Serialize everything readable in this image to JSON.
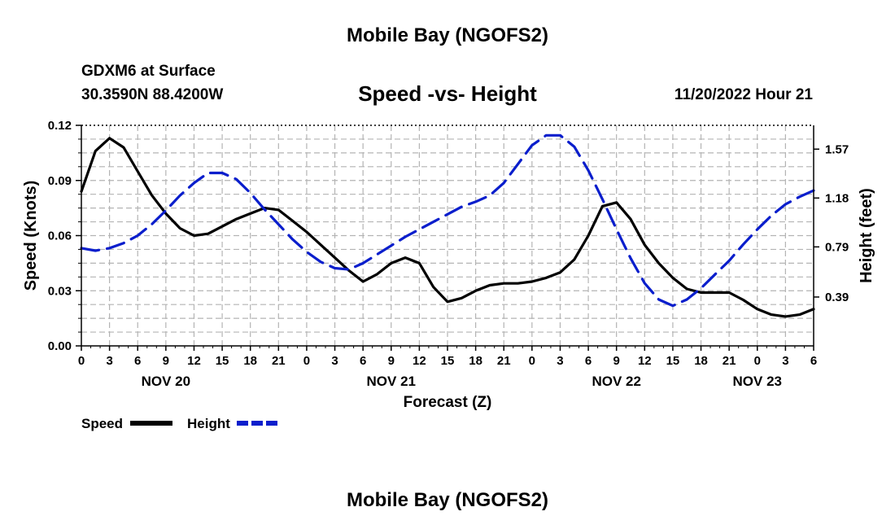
{
  "header": {
    "title": "Mobile Bay (NGOFS2)",
    "station": "GDXM6 at Surface",
    "location": "30.3590N  88.4200W",
    "subtitle": "Speed -vs- Height",
    "timestamp": "11/20/2022 Hour 21"
  },
  "footer": {
    "title": "Mobile Bay (NGOFS2)"
  },
  "chart_data": {
    "type": "line",
    "title": "Speed -vs- Height",
    "xlabel": "Forecast (Z)",
    "ylabel": "Speed (Knots)",
    "y2label": "Height (feet)",
    "xlim": [
      0,
      78
    ],
    "ylim": [
      0,
      0.12
    ],
    "y2lim": [
      0.0,
      1.76
    ],
    "x_ticks": [
      0,
      3,
      6,
      9,
      12,
      15,
      18,
      21,
      24,
      27,
      30,
      33,
      36,
      39,
      42,
      45,
      48,
      51,
      54,
      57,
      60,
      63,
      66,
      69,
      72,
      75,
      78
    ],
    "x_tick_labels": [
      "0",
      "3",
      "6",
      "9",
      "12",
      "15",
      "18",
      "21",
      "0",
      "3",
      "6",
      "9",
      "12",
      "15",
      "18",
      "21",
      "0",
      "3",
      "6",
      "9",
      "12",
      "15",
      "18",
      "21",
      "0",
      "3",
      "6"
    ],
    "date_labels": [
      {
        "x": 9,
        "label": "NOV 20"
      },
      {
        "x": 33,
        "label": "NOV 21"
      },
      {
        "x": 57,
        "label": "NOV 22"
      },
      {
        "x": 72,
        "label": "NOV 23"
      }
    ],
    "y_ticks": [
      0.0,
      0.03,
      0.06,
      0.09,
      0.12
    ],
    "y_tick_labels": [
      "0.00",
      "0.03",
      "0.06",
      "0.09",
      "0.12"
    ],
    "y2_ticks": [
      0.39,
      0.79,
      1.18,
      1.57
    ],
    "y2_tick_labels": [
      "0.39",
      "0.79",
      "1.18",
      "1.57"
    ],
    "grid": true,
    "legend": "bottom-left",
    "series": [
      {
        "name": "Speed",
        "axis": "left",
        "color": "#000000",
        "dash": "solid",
        "x": [
          0,
          1.5,
          3,
          4.5,
          6,
          7.5,
          9,
          10.5,
          12,
          13.5,
          15,
          16.5,
          18,
          19.5,
          21,
          22.5,
          24,
          25.5,
          27,
          28.5,
          30,
          31.5,
          33,
          34.5,
          36,
          37.5,
          39,
          40.5,
          42,
          43.5,
          45,
          46.5,
          48,
          49.5,
          51,
          52.5,
          54,
          55.5,
          57,
          58.5,
          60,
          61.5,
          63,
          64.5,
          66,
          67.5,
          69,
          70.5,
          72,
          73.5,
          75,
          76.5,
          78
        ],
        "values": [
          0.084,
          0.106,
          0.113,
          0.108,
          0.095,
          0.082,
          0.072,
          0.064,
          0.06,
          0.061,
          0.065,
          0.069,
          0.072,
          0.075,
          0.074,
          0.068,
          0.062,
          0.055,
          0.048,
          0.041,
          0.035,
          0.039,
          0.045,
          0.048,
          0.045,
          0.032,
          0.024,
          0.026,
          0.03,
          0.033,
          0.034,
          0.034,
          0.035,
          0.037,
          0.04,
          0.047,
          0.06,
          0.076,
          0.078,
          0.069,
          0.055,
          0.045,
          0.037,
          0.031,
          0.029,
          0.029,
          0.029,
          0.025,
          0.02,
          0.017,
          0.016,
          0.017,
          0.02
        ]
      },
      {
        "name": "Height",
        "axis": "right",
        "color": "#0a1ecc",
        "dash": "dashed",
        "x": [
          0,
          1.5,
          3,
          4.5,
          6,
          7.5,
          9,
          10.5,
          12,
          13.5,
          15,
          16.5,
          18,
          19.5,
          21,
          22.5,
          24,
          25.5,
          27,
          28.5,
          30,
          31.5,
          33,
          34.5,
          36,
          37.5,
          39,
          40.5,
          42,
          43.5,
          45,
          46.5,
          48,
          49.5,
          51,
          52.5,
          54,
          55.5,
          57,
          58.5,
          60,
          61.5,
          63,
          64.5,
          66,
          67.5,
          69,
          70.5,
          72,
          73.5,
          75,
          76.5,
          78
        ],
        "values": [
          0.78,
          0.76,
          0.78,
          0.82,
          0.88,
          0.97,
          1.08,
          1.2,
          1.3,
          1.38,
          1.38,
          1.33,
          1.22,
          1.09,
          0.97,
          0.85,
          0.75,
          0.67,
          0.62,
          0.61,
          0.66,
          0.73,
          0.8,
          0.87,
          0.93,
          0.99,
          1.05,
          1.11,
          1.15,
          1.2,
          1.3,
          1.45,
          1.6,
          1.68,
          1.68,
          1.59,
          1.4,
          1.17,
          0.93,
          0.7,
          0.5,
          0.37,
          0.32,
          0.37,
          0.46,
          0.57,
          0.68,
          0.81,
          0.93,
          1.04,
          1.13,
          1.19,
          1.24
        ]
      }
    ]
  }
}
